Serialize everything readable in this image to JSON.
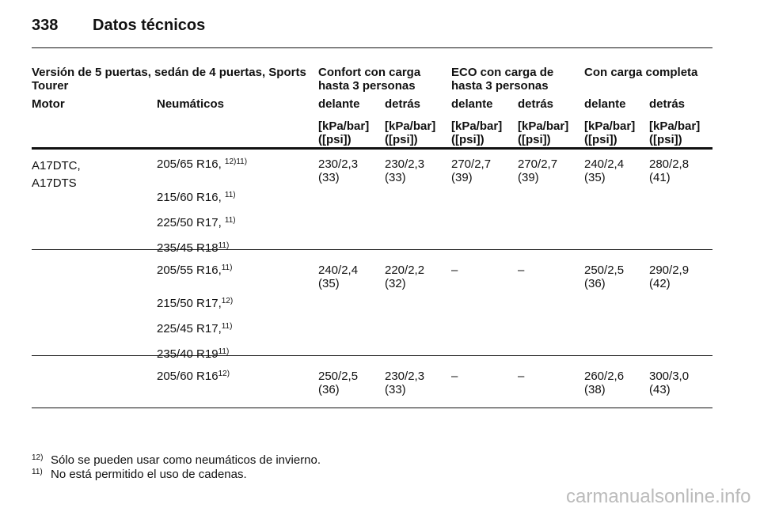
{
  "header": {
    "page": "338",
    "title": "Datos técnicos"
  },
  "table": {
    "group_headers": [
      "Versión de 5 puertas, sedán de 4 puertas, Sports\nTourer",
      "Confort con carga\nhasta 3 personas",
      "ECO con carga de\nhasta 3 personas",
      "Con carga completa"
    ],
    "columns": [
      "Motor",
      "Neumáticos",
      "delante",
      "detrás",
      "delante",
      "detrás",
      "delante",
      "detrás"
    ],
    "units": [
      "[kPa/bar]\n([psi])",
      "[kPa/bar]\n([psi])",
      "[kPa/bar]\n([psi])",
      "[kPa/bar]\n([psi])",
      "[kPa/bar]\n([psi])",
      "[kPa/bar]\n([psi])"
    ],
    "rows": [
      {
        "motor": "A17DTC,\nA17DTS",
        "tyres": [
          {
            "size": "205/65 R16, ",
            "notes": "12)11)"
          },
          {
            "size": "215/60 R16, ",
            "notes": "11)"
          },
          {
            "size": "225/50 R17, ",
            "notes": "11)"
          },
          {
            "size": "235/45 R18",
            "notes": "11)"
          }
        ],
        "values": [
          "230/2,3\n(33)",
          "230/2,3\n(33)",
          "270/2,7\n(39)",
          "270/2,7\n(39)",
          "240/2,4\n(35)",
          "280/2,8\n(41)"
        ]
      },
      {
        "motor": null,
        "tyres": [
          {
            "size": "205/55 R16,",
            "notes": "11)"
          },
          {
            "size": "215/50 R17,",
            "notes": "12)"
          },
          {
            "size": "225/45 R17,",
            "notes": "11)"
          },
          {
            "size": "235/40 R19",
            "notes": "11)"
          }
        ],
        "values": [
          "240/2,4\n(35)",
          "220/2,2\n(32)",
          "–",
          "–",
          "250/2,5\n(36)",
          "290/2,9\n(42)"
        ]
      },
      {
        "motor": null,
        "tyres": [
          {
            "size": "205/60 R16",
            "notes": "12)"
          }
        ],
        "values": [
          "250/2,5\n(36)",
          "230/2,3\n(33)",
          "–",
          "–",
          "260/2,6\n(38)",
          "300/3,0\n(43)"
        ]
      }
    ]
  },
  "footnotes": [
    {
      "mark": "12)",
      "text": "Sólo se pueden usar como neumáticos de invierno."
    },
    {
      "mark": "11)",
      "text": "No está permitido el uso de cadenas."
    }
  ],
  "watermark": "carmanualsonline.info"
}
